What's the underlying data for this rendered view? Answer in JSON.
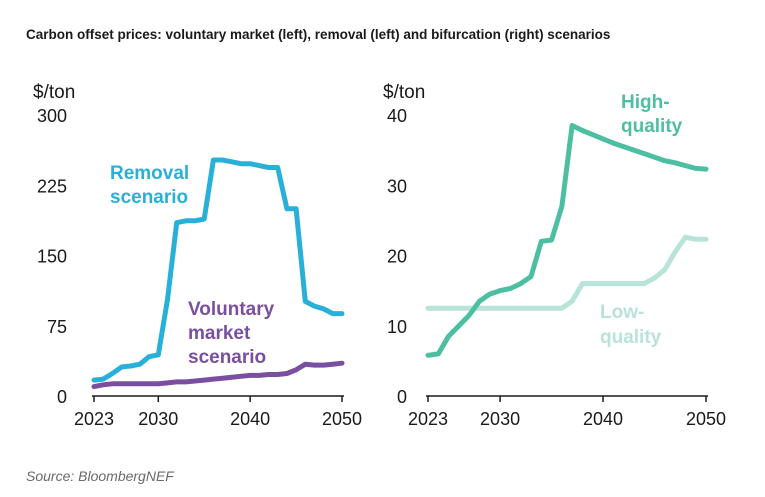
{
  "title": "Carbon offset prices: voluntary market (left), removal (left) and bifurcation (right) scenarios",
  "source": "Source: BloombergNEF",
  "colors": {
    "removal": "#29b0d8",
    "voluntary": "#7a4fa0",
    "high_quality": "#4cbfa3",
    "low_quality": "#b7e3d8",
    "axis": "#1a1a1a"
  },
  "chart_data": [
    {
      "type": "line",
      "unit_label": "$/ton",
      "xlim": [
        2023,
        2050
      ],
      "ylim": [
        0,
        300
      ],
      "x_ticks": [
        "2023",
        "2030",
        "2040",
        "2050"
      ],
      "y_ticks": [
        "0",
        "75",
        "150",
        "225",
        "300"
      ],
      "series": [
        {
          "name": "Removal scenario",
          "label_lines": [
            "Removal",
            "scenario"
          ],
          "color_key": "removal",
          "x": [
            2023,
            2024,
            2025,
            2026,
            2027,
            2028,
            2029,
            2030,
            2031,
            2032,
            2033,
            2034,
            2035,
            2036,
            2037,
            2038,
            2039,
            2040,
            2041,
            2042,
            2043,
            2044,
            2045,
            2046,
            2047,
            2048,
            2049,
            2050
          ],
          "values": [
            17,
            18,
            24,
            31,
            32,
            34,
            42,
            44,
            103,
            185,
            187,
            187,
            189,
            252,
            252,
            250,
            248,
            248,
            246,
            244,
            244,
            200,
            200,
            101,
            96,
            93,
            88,
            88
          ]
        },
        {
          "name": "Voluntary market scenario",
          "label_lines": [
            "Voluntary",
            "market",
            "scenario"
          ],
          "color_key": "voluntary",
          "x": [
            2023,
            2024,
            2025,
            2026,
            2027,
            2028,
            2029,
            2030,
            2031,
            2032,
            2033,
            2034,
            2035,
            2036,
            2037,
            2038,
            2039,
            2040,
            2041,
            2042,
            2043,
            2044,
            2045,
            2046,
            2047,
            2048,
            2049,
            2050
          ],
          "values": [
            10,
            12,
            13,
            13,
            13,
            13,
            13,
            13,
            14,
            15,
            15,
            16,
            17,
            18,
            19,
            20,
            21,
            22,
            22,
            23,
            23,
            24,
            28,
            34,
            33,
            33,
            34,
            35
          ]
        }
      ]
    },
    {
      "type": "line",
      "unit_label": "$/ton",
      "xlim": [
        2023,
        2050
      ],
      "ylim": [
        0,
        40
      ],
      "x_ticks": [
        "2023",
        "2030",
        "2040",
        "2050"
      ],
      "y_ticks": [
        "0",
        "10",
        "20",
        "30",
        "40"
      ],
      "series": [
        {
          "name": "High-quality",
          "label_lines": [
            "High-",
            "quality"
          ],
          "color_key": "high_quality",
          "x": [
            2023,
            2024,
            2025,
            2026,
            2027,
            2028,
            2029,
            2030,
            2031,
            2032,
            2033,
            2034,
            2035,
            2036,
            2037,
            2038,
            2039,
            2040,
            2041,
            2042,
            2043,
            2044,
            2045,
            2046,
            2047,
            2048,
            2049,
            2050
          ],
          "values": [
            5.8,
            6.0,
            8.5,
            10.0,
            11.5,
            13.5,
            14.5,
            15.0,
            15.3,
            16.0,
            17.0,
            22.0,
            22.2,
            27.0,
            38.5,
            37.8,
            37.2,
            36.6,
            36.0,
            35.5,
            35.0,
            34.5,
            34.0,
            33.5,
            33.2,
            32.8,
            32.4,
            32.3
          ]
        },
        {
          "name": "Low-quality",
          "label_lines": [
            "Low-",
            "quality"
          ],
          "color_key": "low_quality",
          "x": [
            2023,
            2024,
            2025,
            2026,
            2027,
            2028,
            2029,
            2030,
            2031,
            2032,
            2033,
            2034,
            2035,
            2036,
            2037,
            2038,
            2039,
            2040,
            2041,
            2042,
            2043,
            2044,
            2045,
            2046,
            2047,
            2048,
            2049,
            2050
          ],
          "values": [
            12.5,
            12.5,
            12.5,
            12.5,
            12.5,
            12.5,
            12.5,
            12.5,
            12.5,
            12.5,
            12.5,
            12.5,
            12.5,
            12.5,
            13.5,
            16.0,
            16.0,
            16.0,
            16.0,
            16.0,
            16.0,
            16.0,
            16.8,
            18.0,
            20.5,
            22.6,
            22.3,
            22.3
          ]
        }
      ]
    }
  ]
}
